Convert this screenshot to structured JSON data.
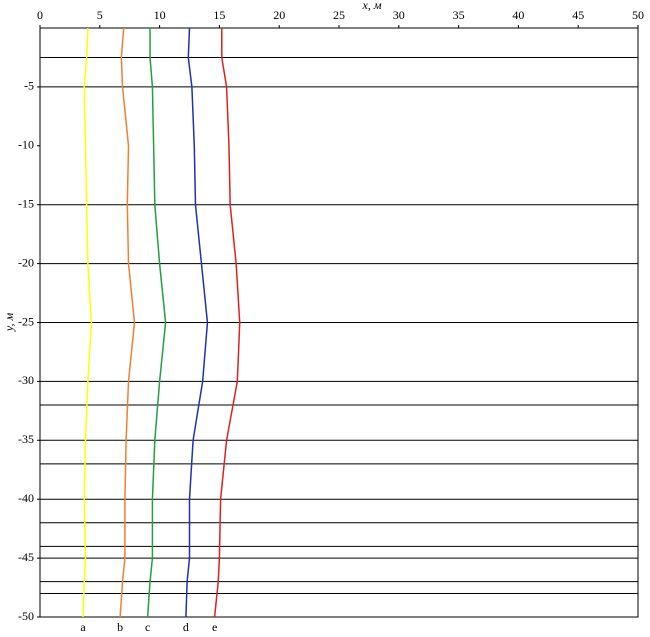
{
  "chart_data": {
    "type": "line",
    "x_label": "x, м",
    "y_label": "y, м",
    "xlim": [
      0,
      50
    ],
    "xticks": [
      0,
      5,
      10,
      15,
      20,
      25,
      30,
      35,
      40,
      45,
      50
    ],
    "ylim": [
      -50,
      0
    ],
    "yticks": [
      -5,
      -10,
      -15,
      -20,
      -25,
      -30,
      -35,
      -40,
      -45,
      -50
    ],
    "layer_boundaries": [
      -2.5,
      -5,
      -15,
      -20,
      -25,
      -30,
      -32,
      -35,
      -37,
      -40,
      -42,
      -44,
      -45,
      -47,
      -48
    ],
    "y": [
      0,
      -2.5,
      -5,
      -10,
      -15,
      -20,
      -25,
      -30,
      -35,
      -40,
      -45,
      -47,
      -50
    ],
    "series": [
      {
        "name": "a",
        "color": "#ffff00",
        "values": [
          4.0,
          3.9,
          3.7,
          3.8,
          3.9,
          4.0,
          4.3,
          4.0,
          3.8,
          3.7,
          3.8,
          3.7,
          3.6
        ]
      },
      {
        "name": "b",
        "color": "#f08030",
        "values": [
          7.0,
          6.8,
          6.9,
          7.4,
          7.3,
          7.4,
          7.9,
          7.4,
          7.2,
          7.1,
          7.1,
          6.9,
          6.7
        ]
      },
      {
        "name": "c",
        "color": "#20a040",
        "values": [
          9.2,
          9.2,
          9.4,
          9.5,
          9.6,
          10.0,
          10.5,
          10.0,
          9.6,
          9.4,
          9.4,
          9.2,
          9.0
        ]
      },
      {
        "name": "d",
        "color": "#2030b0",
        "values": [
          12.5,
          12.4,
          12.7,
          12.9,
          13.0,
          13.5,
          14.0,
          13.6,
          12.8,
          12.5,
          12.5,
          12.3,
          12.2
        ]
      },
      {
        "name": "e",
        "color": "#e02020",
        "values": [
          15.2,
          15.2,
          15.6,
          15.8,
          15.9,
          16.4,
          16.7,
          16.5,
          15.6,
          15.1,
          15.0,
          14.9,
          14.6
        ]
      }
    ]
  }
}
